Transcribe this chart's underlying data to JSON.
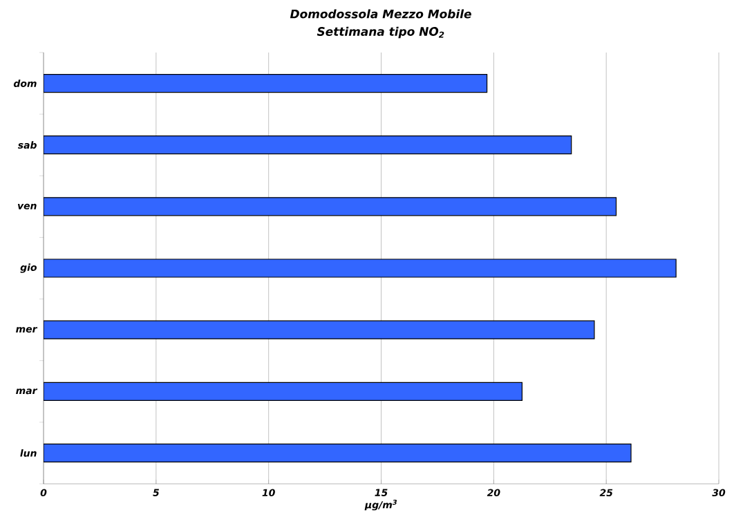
{
  "chart_data": {
    "type": "bar",
    "orientation": "horizontal",
    "title": "Domodossola Mezzo Mobile",
    "subtitle": "Settimana tipo NO$_{2}$",
    "xlabel": "µg/m$^{3}$",
    "categories": [
      "dom",
      "sab",
      "ven",
      "gio",
      "mer",
      "mar",
      "lun"
    ],
    "values": [
      19.7,
      23.45,
      25.44,
      28.1,
      24.47,
      21.26,
      26.1
    ],
    "color": "#3366ff",
    "xlim": [
      0,
      30
    ],
    "xticks": [
      0,
      5,
      10,
      15,
      20,
      25,
      30
    ],
    "grid": "x"
  }
}
